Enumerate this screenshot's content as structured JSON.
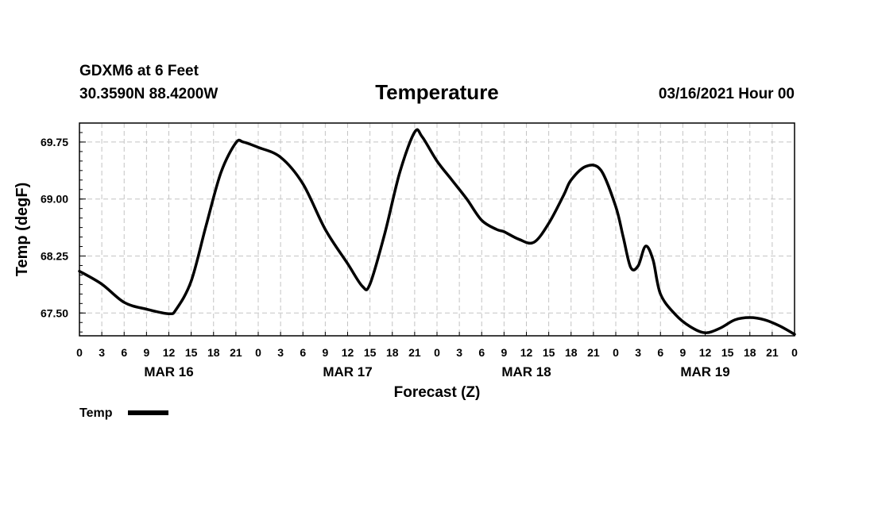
{
  "header": {
    "station": "GDXM6 at 6 Feet",
    "coords": "30.3590N 88.4200W",
    "title": "Temperature",
    "datetime": "03/16/2021 Hour 00"
  },
  "legend": {
    "label": "Temp"
  },
  "chart_data": {
    "type": "line",
    "title": "Temperature",
    "xlabel": "Forecast (Z)",
    "ylabel": "Temp (degF)",
    "xlim": [
      0,
      96
    ],
    "ylim": [
      67.2,
      70.0
    ],
    "grid": true,
    "legend_position": "bottom-left",
    "y_ticks": [
      {
        "value": 67.5,
        "label": "67.50"
      },
      {
        "value": 68.25,
        "label": "68.25"
      },
      {
        "value": 69.0,
        "label": "69.00"
      },
      {
        "value": 69.75,
        "label": "69.75"
      }
    ],
    "x_ticks": [
      "0",
      "3",
      "6",
      "9",
      "12",
      "15",
      "18",
      "21",
      "0",
      "3",
      "6",
      "9",
      "12",
      "15",
      "18",
      "21",
      "0",
      "3",
      "6",
      "9",
      "12",
      "15",
      "18",
      "21",
      "0",
      "3",
      "6",
      "9",
      "12",
      "15",
      "18",
      "21",
      "0"
    ],
    "day_labels": [
      {
        "label": "MAR 16",
        "hour": 12
      },
      {
        "label": "MAR 17",
        "hour": 36
      },
      {
        "label": "MAR 18",
        "hour": 60
      },
      {
        "label": "MAR 19",
        "hour": 84
      }
    ],
    "series": [
      {
        "name": "Temp",
        "x": [
          0,
          3,
          6,
          9,
          12,
          13,
          15,
          17,
          19,
          21,
          22,
          24,
          27,
          30,
          33,
          36,
          38,
          39,
          41,
          43,
          45,
          46,
          48,
          50,
          52,
          54,
          56,
          57,
          59,
          61,
          63,
          65,
          66,
          68,
          70,
          72,
          73,
          74,
          75,
          76,
          77,
          78,
          80,
          82,
          84,
          86,
          88,
          90,
          92,
          94,
          96
        ],
        "y": [
          68.05,
          67.88,
          67.64,
          67.55,
          67.49,
          67.55,
          67.92,
          68.65,
          69.35,
          69.74,
          69.75,
          69.68,
          69.55,
          69.2,
          68.6,
          68.15,
          67.85,
          67.88,
          68.55,
          69.35,
          69.88,
          69.82,
          69.5,
          69.25,
          69.0,
          68.72,
          68.6,
          68.57,
          68.47,
          68.43,
          68.68,
          69.05,
          69.25,
          69.43,
          69.38,
          68.9,
          68.5,
          68.1,
          68.12,
          68.38,
          68.2,
          67.75,
          67.48,
          67.32,
          67.24,
          67.3,
          67.41,
          67.44,
          67.41,
          67.33,
          67.22
        ]
      }
    ]
  }
}
